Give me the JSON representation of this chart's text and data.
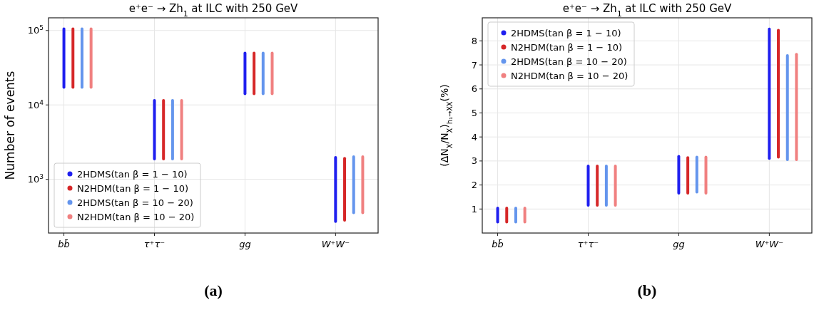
{
  "chart_data": [
    {
      "type": "bar",
      "title": "e⁺e⁻ → Zh$_{1}$ at ILC with 250 GeV",
      "ylabel": "Number of events",
      "annotations": [
        "(a)"
      ],
      "categories": [
        "bb̄",
        "τ⁺τ⁻",
        "gg",
        "W⁺W⁻"
      ],
      "log": "y",
      "ylim": [
        190,
        148000
      ],
      "yticks": [
        {
          "value": 1000,
          "label": "10$^{3}$"
        },
        {
          "value": 10000,
          "label": "10$^{4}$"
        },
        {
          "value": 100000,
          "label": "10$^{5}$"
        }
      ],
      "grid": true,
      "legend": "bottom left",
      "marker": "circle",
      "series": [
        {
          "name": "2HDMS(tan β = 1 − 10)",
          "color": "#1f1fef",
          "base": [
            16500,
            1800,
            13500,
            260
          ],
          "values": [
            93500,
            10200,
            38500,
            1790
          ]
        },
        {
          "name": "N2HDM(tan β = 1 − 10)",
          "color": "#d62728",
          "base": [
            16500,
            1800,
            13500,
            270
          ],
          "values": [
            93500,
            10200,
            38500,
            1730
          ]
        },
        {
          "name": "2HDMS(tan β = 10 − 20)",
          "color": "#6495ed",
          "base": [
            16500,
            1800,
            13500,
            340
          ],
          "values": [
            93500,
            10200,
            38500,
            1760
          ]
        },
        {
          "name": "N2HDM(tan β = 10 − 20)",
          "color": "#f08080",
          "base": [
            16500,
            1800,
            13500,
            340
          ],
          "values": [
            93500,
            10200,
            38500,
            1760
          ]
        }
      ]
    },
    {
      "type": "bar",
      "title": "e⁺e⁻ → Zh$_{1}$ at ILC with 250 GeV",
      "ylabel": "(ΔN$_{X}$/N$_{X}$)$_{h₁→XX}$(%)",
      "annotations": [
        "(b)"
      ],
      "categories": [
        "bb̄",
        "τ⁺τ⁻",
        "gg",
        "W⁺W⁻"
      ],
      "ylim": [
        0,
        8.96
      ],
      "yticks": [
        1,
        2,
        3,
        4,
        5,
        6,
        7,
        8
      ],
      "grid": true,
      "legend": "top left",
      "marker": "circle",
      "series": [
        {
          "name": "2HDMS(tan β = 1 − 10)",
          "color": "#1f1fef",
          "base": [
            0.4,
            1.1,
            1.6,
            3.05
          ],
          "values": [
            0.7,
            1.75,
            1.65,
            5.5
          ]
        },
        {
          "name": "N2HDM(tan β = 1 − 10)",
          "color": "#d62728",
          "base": [
            0.4,
            1.1,
            1.6,
            3.1
          ],
          "values": [
            0.7,
            1.75,
            1.6,
            5.4
          ]
        },
        {
          "name": "2HDMS(tan β = 10 − 20)",
          "color": "#6495ed",
          "base": [
            0.4,
            1.1,
            1.65,
            3.0
          ],
          "values": [
            0.7,
            1.75,
            1.57,
            4.45
          ]
        },
        {
          "name": "N2HDM(tan β = 10 − 20)",
          "color": "#f08080",
          "base": [
            0.4,
            1.1,
            1.6,
            3.0
          ],
          "values": [
            0.7,
            1.75,
            1.62,
            4.5
          ]
        }
      ]
    }
  ]
}
